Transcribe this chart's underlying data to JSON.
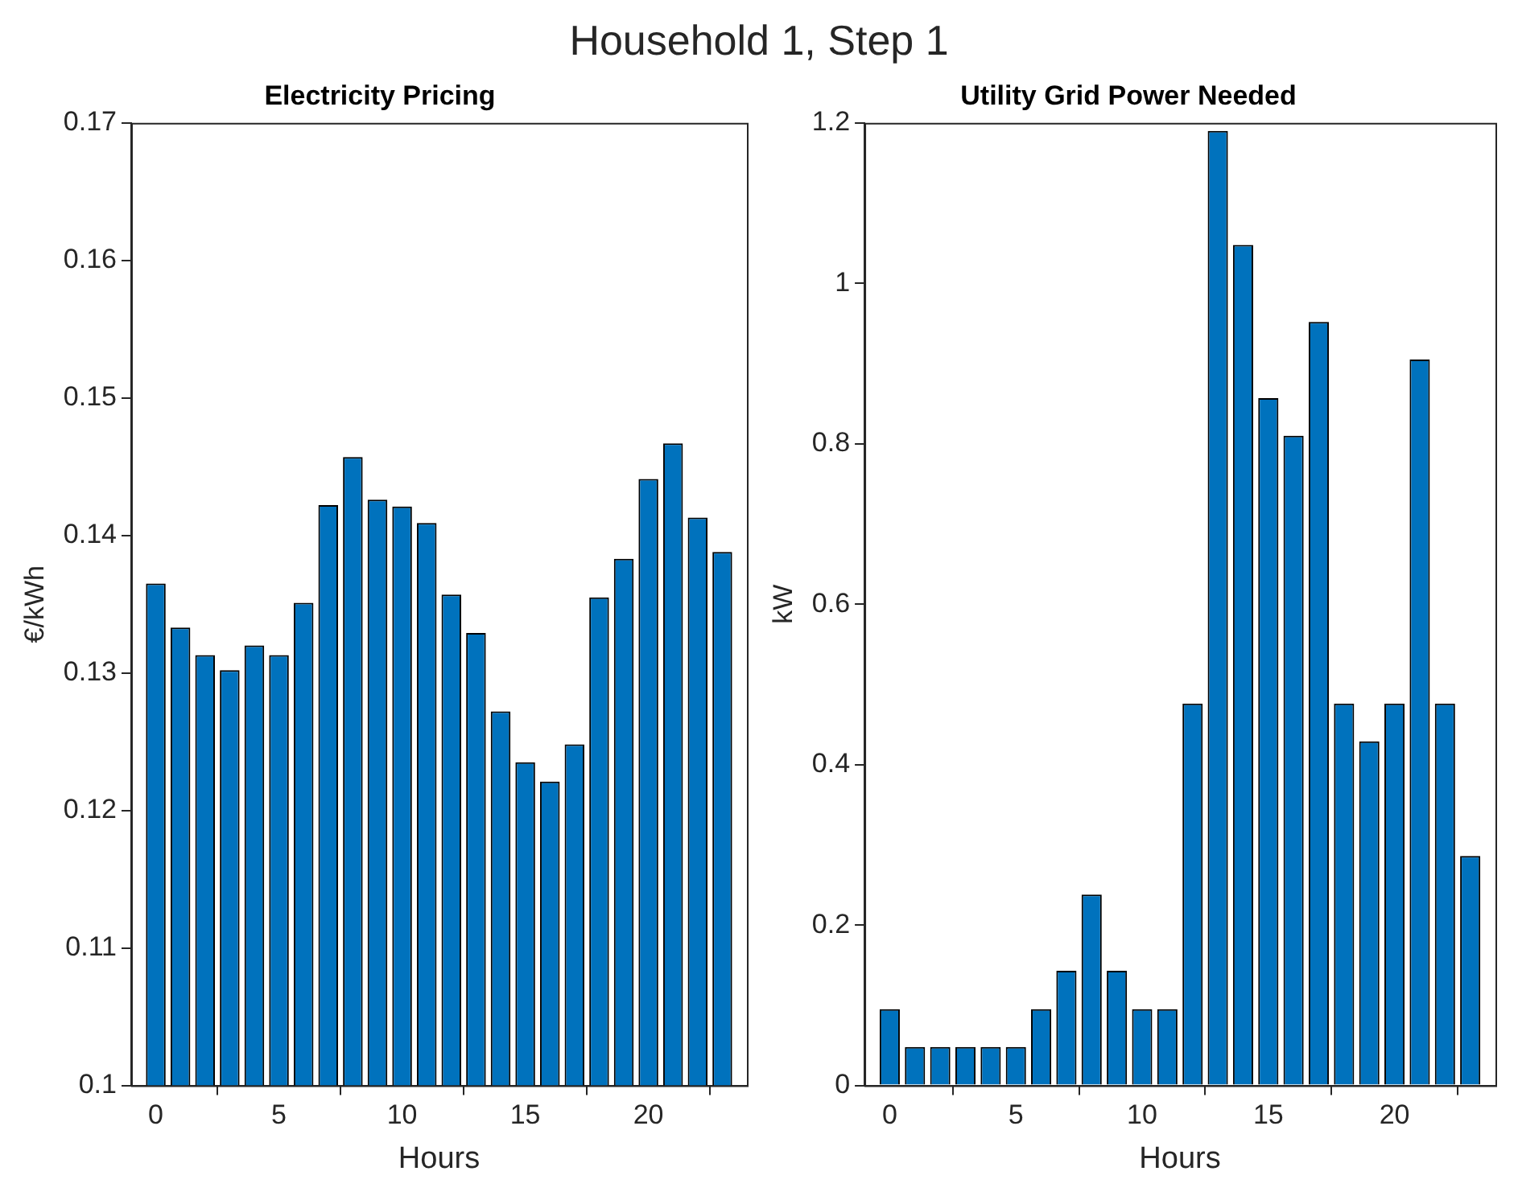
{
  "chart_data": [
    {
      "type": "bar",
      "title": "Electricity Pricing",
      "xlabel": "Hours",
      "ylabel": "€/kWh",
      "annotations": [
        "Household 1, Step 1"
      ],
      "x": [
        0,
        1,
        2,
        3,
        4,
        5,
        6,
        7,
        8,
        9,
        10,
        11,
        12,
        13,
        14,
        15,
        16,
        17,
        18,
        19,
        20,
        21,
        22,
        23
      ],
      "values": [
        0.1365,
        0.1333,
        0.1313,
        0.1302,
        0.132,
        0.1313,
        0.1351,
        0.1422,
        0.1457,
        0.1426,
        0.1421,
        0.1409,
        0.1357,
        0.1329,
        0.1272,
        0.1235,
        0.1221,
        0.1248,
        0.1355,
        0.1383,
        0.1441,
        0.1467,
        0.1413,
        0.1388
      ],
      "color": "#0072bd",
      "xlim": [
        -1,
        24
      ],
      "xticks": [
        0,
        5,
        10,
        15,
        20
      ],
      "ylim": [
        0.1,
        0.17
      ],
      "yticks": [
        0.1,
        0.11,
        0.12,
        0.13,
        0.14,
        0.15,
        0.16,
        0.17
      ],
      "grid": false,
      "legend": false
    },
    {
      "type": "bar",
      "title": "Utility Grid Power Needed",
      "xlabel": "Hours",
      "ylabel": "kW",
      "x": [
        0,
        1,
        2,
        3,
        4,
        5,
        6,
        7,
        8,
        9,
        10,
        11,
        12,
        13,
        14,
        15,
        16,
        17,
        18,
        19,
        20,
        21,
        22,
        23
      ],
      "values": [
        0.095,
        0.048,
        0.048,
        0.048,
        0.048,
        0.048,
        0.095,
        0.143,
        0.238,
        0.143,
        0.095,
        0.095,
        0.476,
        1.19,
        1.048,
        0.857,
        0.81,
        0.952,
        0.476,
        0.429,
        0.476,
        0.905,
        0.476,
        0.286
      ],
      "color": "#0072bd",
      "xlim": [
        -1,
        24
      ],
      "xticks": [
        0,
        5,
        10,
        15,
        20
      ],
      "ylim": [
        0,
        1.2
      ],
      "yticks": [
        0,
        0.2,
        0.4,
        0.6,
        0.8,
        1,
        1.2
      ],
      "grid": false,
      "legend": false
    }
  ]
}
